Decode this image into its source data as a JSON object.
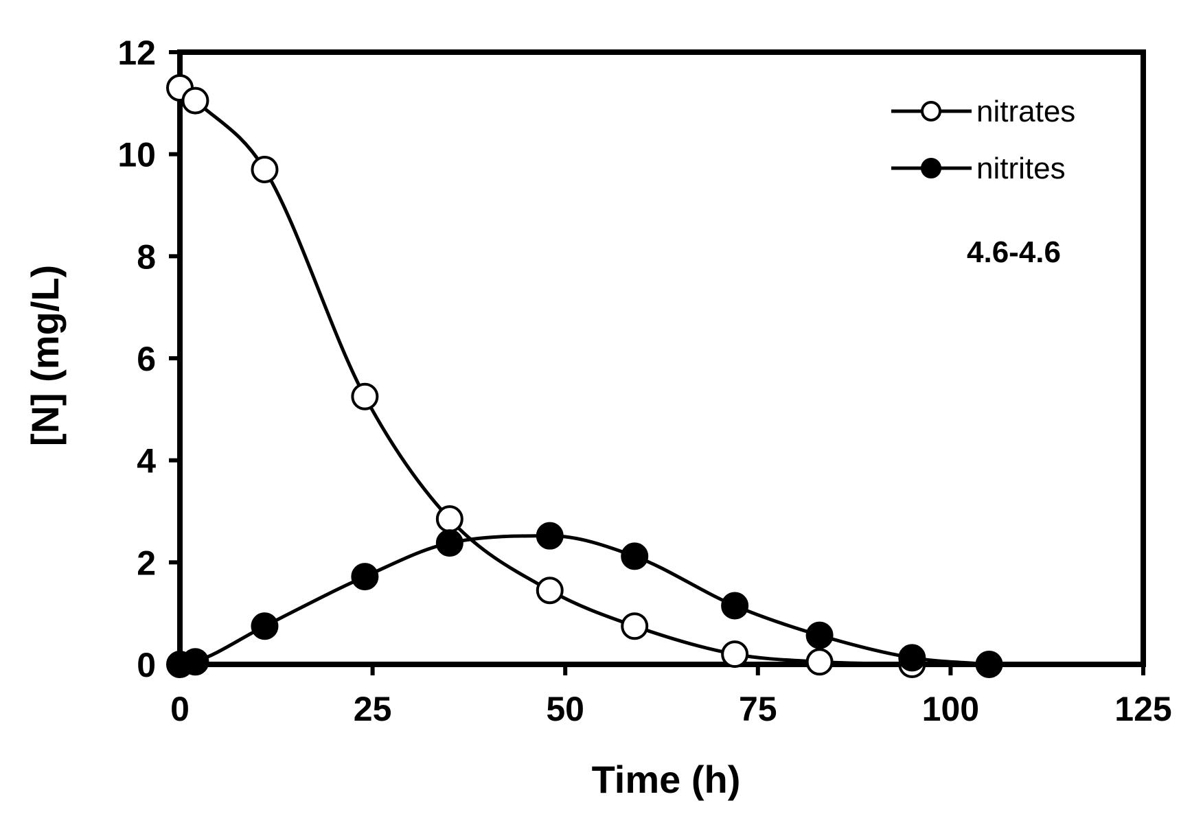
{
  "chart_data": {
    "type": "line",
    "title": "",
    "xlabel": "Time (h)",
    "ylabel": "[N] (mg/L)",
    "xlim": [
      0,
      125
    ],
    "ylim": [
      0,
      12
    ],
    "xticks": [
      "0",
      "25",
      "50",
      "75",
      "100",
      "125"
    ],
    "yticks": [
      "0",
      "2",
      "4",
      "6",
      "8",
      "10",
      "12"
    ],
    "xtick_values": [
      0,
      25,
      50,
      75,
      100,
      125
    ],
    "ytick_values": [
      0,
      2,
      4,
      6,
      8,
      10,
      12
    ],
    "grid": false,
    "legend_position": "top-right",
    "annotation": "4.6-4.6",
    "series": [
      {
        "name": "nitrates",
        "marker": "open-circle",
        "x": [
          0,
          2,
          11,
          24,
          35,
          48,
          59,
          72,
          83,
          95
        ],
        "y": [
          11.3,
          11.05,
          9.7,
          5.25,
          2.85,
          1.45,
          0.75,
          0.2,
          0.05,
          0.0
        ]
      },
      {
        "name": "nitrites",
        "marker": "filled-circle",
        "x": [
          0,
          2,
          11,
          24,
          35,
          48,
          59,
          72,
          83,
          95,
          105
        ],
        "y": [
          0.0,
          0.05,
          0.75,
          1.72,
          2.38,
          2.52,
          2.12,
          1.15,
          0.57,
          0.13,
          0.0
        ]
      }
    ],
    "colors": {
      "line": "#000000",
      "open_fill": "#ffffff",
      "filled": "#000000"
    }
  }
}
